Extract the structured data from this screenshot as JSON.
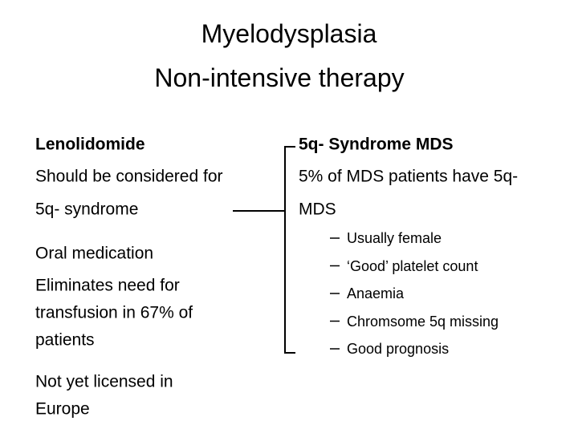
{
  "title": {
    "lines": [
      "Myelodysplasia",
      "Non-intensive therapy"
    ]
  },
  "left": {
    "heading": "Lenolidomide",
    "paragraphs": [
      [
        "Should be considered for",
        "5q- syndrome"
      ],
      [
        "Oral medication",
        "Eliminates need for",
        "transfusion in 67% of",
        "patients"
      ],
      [
        "Not yet licensed in",
        "Europe"
      ]
    ]
  },
  "right": {
    "heading": "5q- Syndrome MDS",
    "paragraph": [
      "5% of MDS patients have 5q-",
      "MDS"
    ],
    "bullets": [
      "Usually female",
      "‘Good’ platelet count",
      "Anaemia",
      "Chromsome 5q missing",
      "Good prognosis"
    ]
  }
}
